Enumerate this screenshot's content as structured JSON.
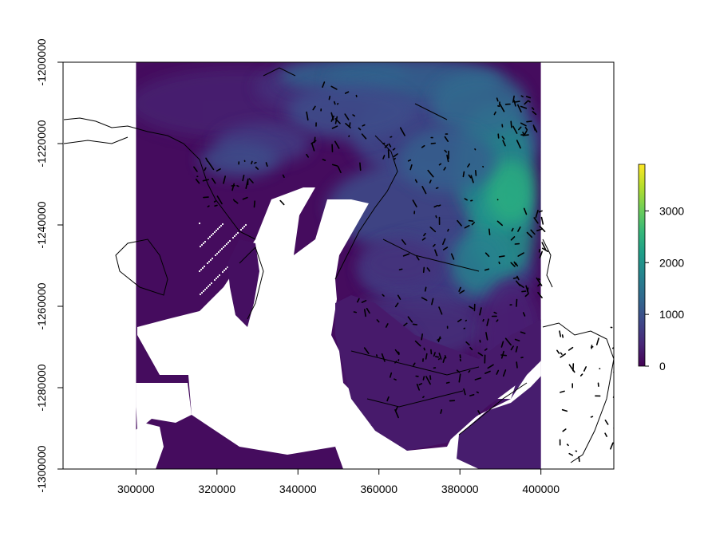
{
  "chart_data": {
    "type": "heatmap",
    "title": "",
    "xlabel": "",
    "ylabel": "",
    "xlim": [
      282000,
      418000
    ],
    "ylim": [
      -1300000,
      -1200000
    ],
    "raster_extent": {
      "x": [
        300000,
        400000
      ],
      "y": [
        -1300000,
        -1200000
      ]
    },
    "x_ticks": [
      {
        "value": 300000,
        "label": "300000"
      },
      {
        "value": 320000,
        "label": "320000"
      },
      {
        "value": 340000,
        "label": "340000"
      },
      {
        "value": 360000,
        "label": "360000"
      },
      {
        "value": 380000,
        "label": "380000"
      },
      {
        "value": 400000,
        "label": "400000"
      }
    ],
    "y_ticks": [
      {
        "value": -1300000,
        "label": "-1300000"
      },
      {
        "value": -1280000,
        "label": "-1280000"
      },
      {
        "value": -1260000,
        "label": "-1260000"
      },
      {
        "value": -1240000,
        "label": "-1240000"
      },
      {
        "value": -1220000,
        "label": "-1220000"
      },
      {
        "value": -1200000,
        "label": "-1200000"
      }
    ],
    "legend": {
      "placement": "right",
      "range": [
        0,
        3900
      ],
      "ticks": [
        {
          "value": 0,
          "label": "0"
        },
        {
          "value": 1000,
          "label": "1000"
        },
        {
          "value": 2000,
          "label": "2000"
        },
        {
          "value": 3000,
          "label": "3000"
        }
      ],
      "colormap": [
        "#440154",
        "#482878",
        "#3e4989",
        "#31688e",
        "#26828e",
        "#1f9e89",
        "#35b779",
        "#6ece58",
        "#b5de2b",
        "#fde725"
      ]
    },
    "grid": false,
    "no_data_color": "#ffffff",
    "outline_color": "#000000"
  }
}
